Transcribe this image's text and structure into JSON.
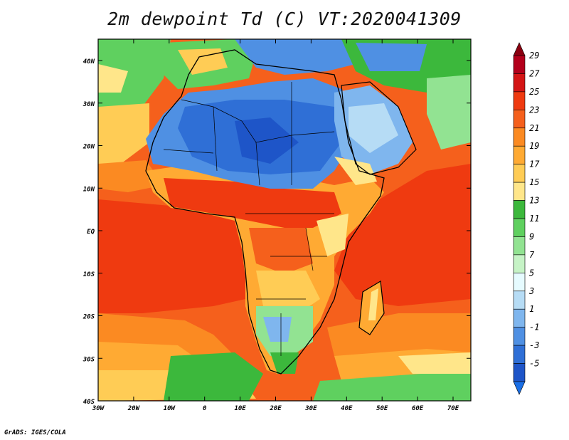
{
  "title": "2m dewpoint Td (C) VT:2020041309",
  "credit": "GrADS: IGES/COLA",
  "map": {
    "lat_labels": [
      "40N",
      "30N",
      "20N",
      "10N",
      "EQ",
      "10S",
      "20S",
      "30S",
      "40S"
    ],
    "lon_labels": [
      "30W",
      "20W",
      "10W",
      "0",
      "10E",
      "20E",
      "30E",
      "40E",
      "50E",
      "60E",
      "70E"
    ]
  },
  "colorbar": {
    "labels": [
      "29",
      "27",
      "25",
      "23",
      "21",
      "19",
      "17",
      "15",
      "13",
      "11",
      "9",
      "7",
      "5",
      "3",
      "1",
      "-1",
      "-3",
      "-5"
    ],
    "colors": [
      "#b3001b",
      "#d41515",
      "#ef3a10",
      "#f5601c",
      "#fb8a22",
      "#ffaa33",
      "#ffcc55",
      "#ffe68a",
      "#3cb83c",
      "#5fd05f",
      "#92e392",
      "#c6f3c6",
      "#e6fbff",
      "#b6dcf5",
      "#7fb6ee",
      "#4f90e3",
      "#2f6fd6",
      "#1e55c8"
    ]
  }
}
